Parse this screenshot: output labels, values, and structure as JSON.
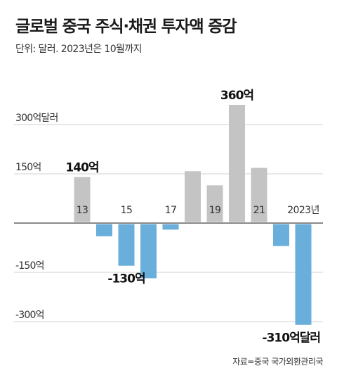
{
  "header": {
    "title": "글로벌 중국 주식·채권 투자액 증감",
    "subtitle": "단위: 달러. 2023년은 10월까지"
  },
  "footer": {
    "source": "자료=중국 국가외환관리국"
  },
  "chart_data": {
    "type": "bar",
    "categories": [
      "2013",
      "2014",
      "2015",
      "2016",
      "2017",
      "2018",
      "2019",
      "2020",
      "2021",
      "2022",
      "2023"
    ],
    "x_tick_labels": [
      "13",
      "15",
      "17",
      "19",
      "21",
      "2023년"
    ],
    "x_tick_categories": [
      "2013",
      "2015",
      "2017",
      "2019",
      "2021",
      "2023"
    ],
    "values": [
      140,
      -40,
      -130,
      -168,
      -20,
      158,
      115,
      360,
      168,
      -70,
      -310
    ],
    "ylim": [
      -340,
      400
    ],
    "y_ticks": [
      {
        "value": 300,
        "label": "300억달러"
      },
      {
        "value": 150,
        "label": "150억"
      },
      {
        "value": -150,
        "label": "-150억"
      },
      {
        "value": -300,
        "label": "-300억"
      }
    ],
    "data_labels": [
      {
        "category": "2013",
        "label": "140억"
      },
      {
        "category": "2015",
        "label": "-130억"
      },
      {
        "category": "2020",
        "label": "360억"
      },
      {
        "category": "2023",
        "label": "-310억달러"
      }
    ],
    "grid": true,
    "colors": {
      "positive": "#c4c4c4",
      "negative": "#6aaedb",
      "grid": "#d0d0d0",
      "axis": "#444444"
    }
  }
}
